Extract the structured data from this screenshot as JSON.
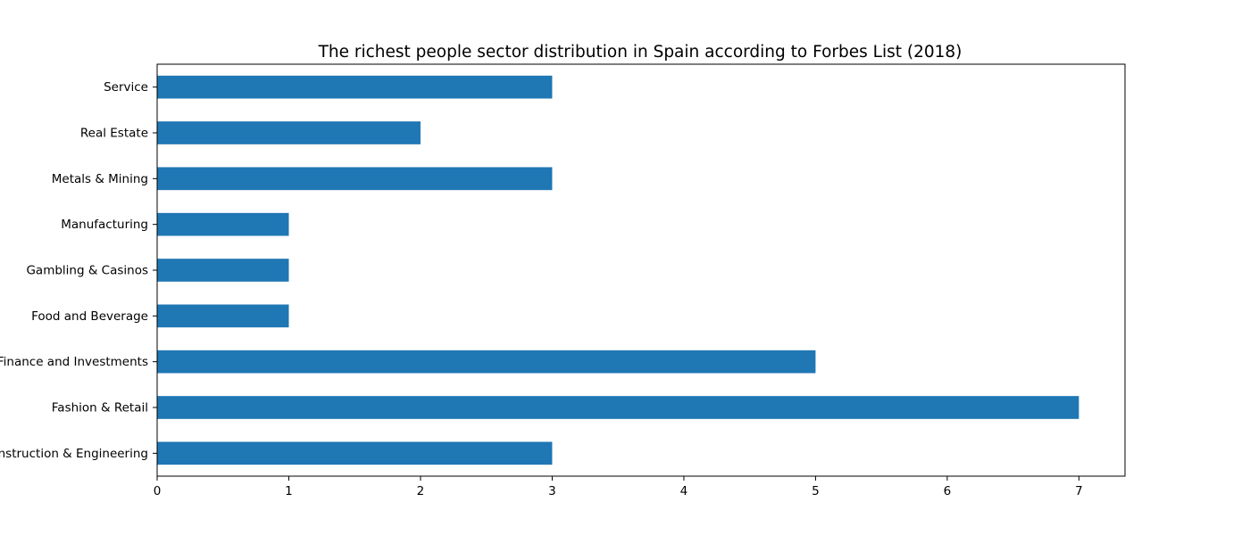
{
  "chart_data": {
    "type": "bar",
    "orientation": "horizontal",
    "title": "The richest people sector distribution in Spain according to Forbes List (2018)",
    "xlabel": "",
    "ylabel": "",
    "categories": [
      "Construction & Engineering",
      "Fashion & Retail",
      "Finance and Investments",
      "Food and Beverage",
      "Gambling & Casinos",
      "Manufacturing",
      "Metals & Mining",
      "Real Estate",
      "Service"
    ],
    "values": [
      3,
      7,
      5,
      1,
      1,
      1,
      3,
      2,
      3
    ],
    "xlim": [
      0,
      7.35
    ],
    "xticks": [
      0,
      1,
      2,
      3,
      4,
      5,
      6,
      7
    ],
    "grid": false,
    "legend": false,
    "colors": {
      "bar": "#1f77b4",
      "axis": "#000000",
      "background": "#ffffff"
    }
  }
}
